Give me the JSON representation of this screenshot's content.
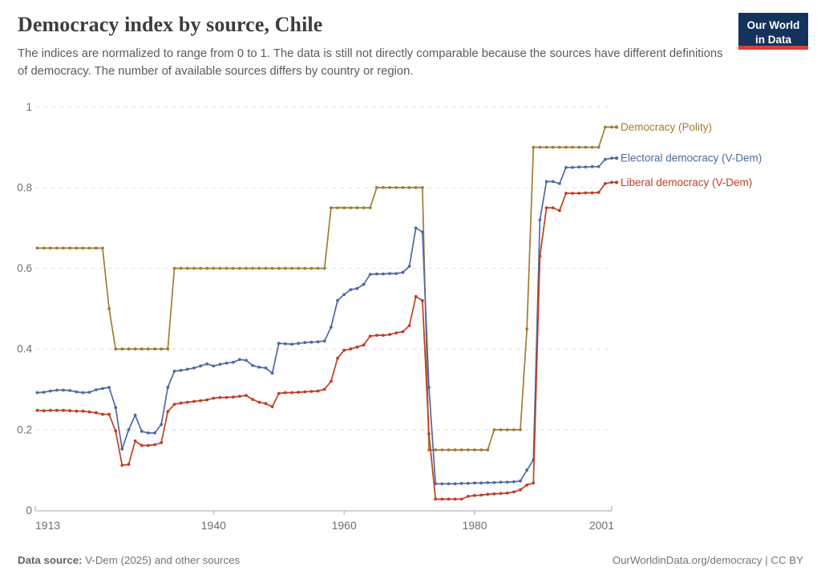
{
  "header": {
    "title": "Democracy index by source, Chile",
    "subtitle": "The indices are normalized to range from 0 to 1. The data is still not directly comparable because the sources have different definitions of democracy. The number of available sources differs by country or region.",
    "logo": {
      "line1": "Our World",
      "line2": "in Data"
    }
  },
  "chart_data": {
    "type": "line",
    "title": "Democracy index by source, Chile",
    "xlabel": "",
    "ylabel": "",
    "ylim": [
      0,
      1
    ],
    "y_ticks": [
      0,
      0.2,
      0.4,
      0.6,
      0.8,
      1
    ],
    "x_ticks": [
      1913,
      1940,
      1960,
      1980,
      2001
    ],
    "grid": "horizontal-dashed",
    "legend_position": "right-of-line-ends",
    "x": [
      1913,
      1914,
      1915,
      1916,
      1917,
      1918,
      1919,
      1920,
      1921,
      1922,
      1923,
      1924,
      1925,
      1926,
      1927,
      1928,
      1929,
      1930,
      1931,
      1932,
      1933,
      1934,
      1935,
      1936,
      1937,
      1938,
      1939,
      1940,
      1941,
      1942,
      1943,
      1944,
      1945,
      1946,
      1947,
      1948,
      1949,
      1950,
      1951,
      1952,
      1953,
      1954,
      1955,
      1956,
      1957,
      1958,
      1959,
      1960,
      1961,
      1962,
      1963,
      1964,
      1965,
      1966,
      1967,
      1968,
      1969,
      1970,
      1971,
      1972,
      1973,
      1974,
      1975,
      1976,
      1977,
      1978,
      1979,
      1980,
      1981,
      1982,
      1983,
      1984,
      1985,
      1986,
      1987,
      1988,
      1989,
      1990,
      1991,
      1992,
      1993,
      1994,
      1995,
      1996,
      1997,
      1998,
      1999,
      2000,
      2001
    ],
    "series": [
      {
        "name": "Democracy (Polity)",
        "color": "#A27B32",
        "values": [
          0.65,
          0.65,
          0.65,
          0.65,
          0.65,
          0.65,
          0.65,
          0.65,
          0.65,
          0.65,
          0.65,
          0.5,
          0.4,
          0.4,
          0.4,
          0.4,
          0.4,
          0.4,
          0.4,
          0.4,
          0.4,
          0.6,
          0.6,
          0.6,
          0.6,
          0.6,
          0.6,
          0.6,
          0.6,
          0.6,
          0.6,
          0.6,
          0.6,
          0.6,
          0.6,
          0.6,
          0.6,
          0.6,
          0.6,
          0.6,
          0.6,
          0.6,
          0.6,
          0.6,
          0.6,
          0.75,
          0.75,
          0.75,
          0.75,
          0.75,
          0.75,
          0.75,
          0.8,
          0.8,
          0.8,
          0.8,
          0.8,
          0.8,
          0.8,
          0.8,
          0.15,
          0.15,
          0.15,
          0.15,
          0.15,
          0.15,
          0.15,
          0.15,
          0.15,
          0.15,
          0.2,
          0.2,
          0.2,
          0.2,
          0.2,
          0.45,
          0.9,
          0.9,
          0.9,
          0.9,
          0.9,
          0.9,
          0.9,
          0.9,
          0.9,
          0.9,
          0.9,
          0.95,
          0.95
        ]
      },
      {
        "name": "Electoral democracy (V-Dem)",
        "color": "#4C6B9E",
        "values": [
          0.292,
          0.293,
          0.296,
          0.298,
          0.298,
          0.297,
          0.294,
          0.292,
          0.293,
          0.299,
          0.302,
          0.305,
          0.255,
          0.152,
          0.2,
          0.236,
          0.196,
          0.192,
          0.192,
          0.213,
          0.305,
          0.345,
          0.347,
          0.35,
          0.353,
          0.358,
          0.363,
          0.358,
          0.362,
          0.365,
          0.367,
          0.374,
          0.372,
          0.359,
          0.355,
          0.353,
          0.34,
          0.414,
          0.413,
          0.412,
          0.414,
          0.416,
          0.417,
          0.418,
          0.42,
          0.454,
          0.52,
          0.535,
          0.547,
          0.55,
          0.56,
          0.585,
          0.586,
          0.586,
          0.587,
          0.587,
          0.59,
          0.605,
          0.7,
          0.69,
          0.305,
          0.066,
          0.066,
          0.066,
          0.066,
          0.067,
          0.067,
          0.068,
          0.068,
          0.069,
          0.069,
          0.07,
          0.07,
          0.071,
          0.073,
          0.1,
          0.125,
          0.72,
          0.815,
          0.815,
          0.81,
          0.85,
          0.85,
          0.851,
          0.851,
          0.852,
          0.852,
          0.87,
          0.873
        ]
      },
      {
        "name": "Liberal democracy (V-Dem)",
        "color": "#C03D22",
        "values": [
          0.248,
          0.247,
          0.248,
          0.248,
          0.248,
          0.247,
          0.246,
          0.246,
          0.244,
          0.242,
          0.238,
          0.238,
          0.197,
          0.112,
          0.114,
          0.172,
          0.161,
          0.161,
          0.163,
          0.168,
          0.245,
          0.263,
          0.266,
          0.268,
          0.27,
          0.272,
          0.274,
          0.278,
          0.28,
          0.28,
          0.281,
          0.283,
          0.285,
          0.275,
          0.268,
          0.265,
          0.257,
          0.29,
          0.292,
          0.292,
          0.293,
          0.294,
          0.295,
          0.296,
          0.3,
          0.32,
          0.377,
          0.397,
          0.4,
          0.405,
          0.41,
          0.432,
          0.434,
          0.434,
          0.436,
          0.44,
          0.443,
          0.458,
          0.53,
          0.52,
          0.19,
          0.028,
          0.028,
          0.028,
          0.028,
          0.028,
          0.035,
          0.037,
          0.038,
          0.04,
          0.041,
          0.042,
          0.043,
          0.046,
          0.051,
          0.063,
          0.068,
          0.63,
          0.75,
          0.75,
          0.743,
          0.786,
          0.786,
          0.786,
          0.787,
          0.787,
          0.788,
          0.81,
          0.813
        ]
      }
    ]
  },
  "footer": {
    "source_label": "Data source:",
    "source_text": " V-Dem (2025) and other sources",
    "link_text": "OurWorldinData.org/democracy | CC BY"
  },
  "colors": {
    "polity": "#A27B32",
    "electoral": "#4C6B9E",
    "liberal": "#C03D22",
    "grid": "#dcdcdc",
    "axis": "#a5a5a5",
    "tick_text": "#6e6e6e",
    "logo_bg": "#14335C",
    "logo_accent": "#DC3F34"
  }
}
